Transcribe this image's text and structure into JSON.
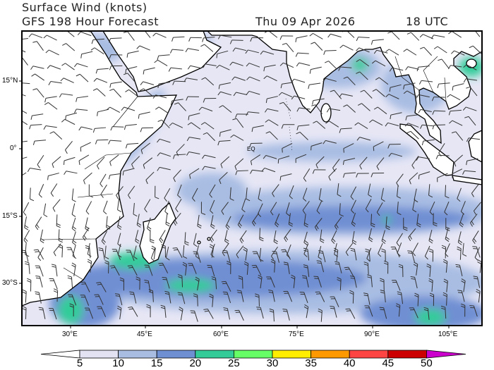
{
  "header": {
    "title": "Surface Wind (knots)",
    "model_line": "GFS 198 Hour Forecast",
    "date": "Thu 09 Apr 2026",
    "time": "18 UTC"
  },
  "map": {
    "lat_labels": [
      "15°N",
      "0°",
      "15°S",
      "30°S"
    ],
    "lon_labels": [
      "30°E",
      "45°E",
      "60°E",
      "75°E",
      "90°E",
      "105°E"
    ],
    "equator_label": "EQ",
    "land_color": "#ffffff",
    "coast_color": "#000000"
  },
  "colorbar": {
    "labels": [
      "5",
      "10",
      "15",
      "20",
      "25",
      "30",
      "35",
      "40",
      "45",
      "50"
    ],
    "below_color": "#ffffff",
    "colors": [
      "#e2e2f3",
      "#a9bde3",
      "#6f8fd3",
      "#33cc99",
      "#66ff66",
      "#ffee00",
      "#ff9900",
      "#ff4444",
      "#cc0000"
    ],
    "above_color": "#cc00cc"
  }
}
